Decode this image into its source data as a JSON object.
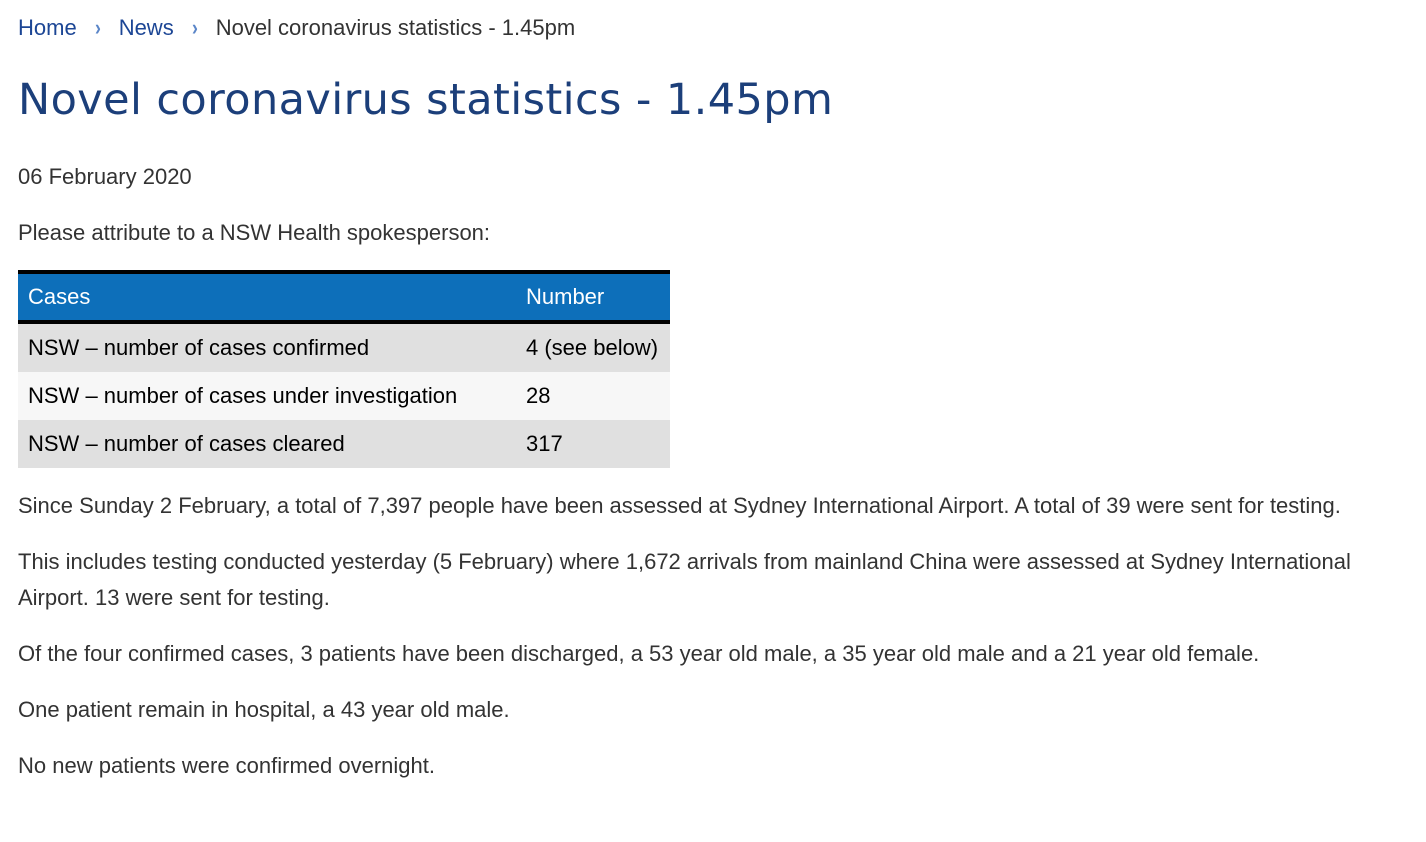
{
  "breadcrumb": {
    "home": "Home",
    "news": "News",
    "current": "Novel coronavirus statistics - 1.45pm",
    "separator_icon": "chevron-right-icon"
  },
  "title": "Novel coronavirus statistics - 1.45pm",
  "date": "06 February 2020",
  "attribution": "Please attribute to a NSW Health spokesperson:",
  "table": {
    "headers": [
      "Cases",
      "Number"
    ],
    "rows": [
      [
        "NSW – number of cases confirmed",
        "4 (see below)"
      ],
      [
        "NSW – number of cases under investigation",
        "28"
      ],
      [
        "NSW – number of cases cleared",
        "317"
      ]
    ]
  },
  "paragraphs": [
    "Since Sunday 2 February, a total of 7,397 people have been assessed at Sydney International Airport. A total of 39 were sent for testing.",
    "This includes testing conducted yesterday (5 February) where 1,672 arrivals from mainland China were assessed at Sydney International Airport. 13 were sent for testing.",
    "Of the four confirmed cases, 3 patients have been discharged, a 53 year old male, a 35 year old male and a 21 year old female.",
    "One patient remain in hospital, a 43 year old male.",
    "No new patients were confirmed overnight."
  ],
  "colors": {
    "link": "#1c4695",
    "title": "#1c3f7a",
    "table_header": "#0d6fba",
    "row_odd": "#e0e0e0",
    "row_even": "#f7f7f7",
    "chevron": "#5b86c8"
  }
}
